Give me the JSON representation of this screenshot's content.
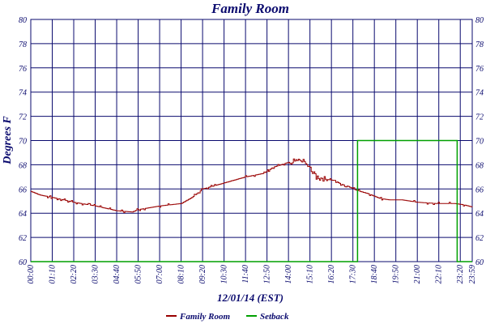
{
  "chart_data": {
    "type": "line",
    "title": "Family Room",
    "ylabel": "Degrees F",
    "xlabel": "12/01/14 (EST)",
    "ylim": [
      60,
      80
    ],
    "yticks": [
      "60",
      "62",
      "64",
      "66",
      "68",
      "70",
      "72",
      "74",
      "76",
      "78",
      "80"
    ],
    "xticks": [
      "00:00",
      "01:10",
      "02:20",
      "03:30",
      "04:40",
      "05:50",
      "07:00",
      "08:10",
      "09:20",
      "10:30",
      "11:40",
      "12:50",
      "14:00",
      "15:10",
      "16:20",
      "17:30",
      "18:40",
      "19:50",
      "21:00",
      "22:10",
      "23:20",
      "23:59"
    ],
    "grid": true,
    "legend_position": "bottom",
    "series": [
      {
        "name": "Family Room",
        "color": "#990000",
        "x_minutes": [
          0,
          30,
          70,
          140,
          210,
          280,
          330,
          350,
          420,
          490,
          525,
          560,
          630,
          700,
          760,
          790,
          840,
          880,
          910,
          930,
          960,
          990,
          1010,
          1035,
          1060,
          1100,
          1140,
          1170,
          1210,
          1260,
          1320,
          1380,
          1410,
          1439
        ],
        "values": [
          65.8,
          65.5,
          65.3,
          64.9,
          64.6,
          64.2,
          64.1,
          64.3,
          64.6,
          64.8,
          65.3,
          66.0,
          66.5,
          67.0,
          67.3,
          67.8,
          68.2,
          68.4,
          67.8,
          67.0,
          66.8,
          66.7,
          66.4,
          66.2,
          65.9,
          65.6,
          65.2,
          65.1,
          65.1,
          64.9,
          64.8,
          64.8,
          64.7,
          64.5
        ]
      },
      {
        "name": "Setback",
        "color": "#00a000",
        "x_minutes": [
          0,
          1065,
          1065,
          1390,
          1390,
          1439
        ],
        "values": [
          60,
          60,
          70,
          70,
          60,
          60
        ]
      }
    ]
  }
}
